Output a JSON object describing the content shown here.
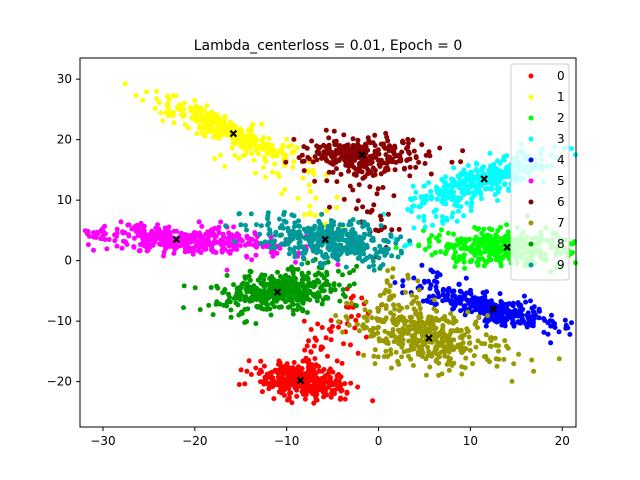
{
  "chart_data": {
    "type": "scatter",
    "title": "Lambda_centerloss = 0.01, Epoch = 0",
    "xlabel": "",
    "ylabel": "",
    "xlim": [
      -32.5,
      21.5
    ],
    "ylim": [
      -27.5,
      33.5
    ],
    "x_ticks": [
      -30,
      -20,
      -10,
      0,
      10,
      20
    ],
    "y_ticks": [
      -20,
      -10,
      0,
      10,
      20,
      30
    ],
    "grid": false,
    "legend_position": "top-right",
    "center_marker": "x",
    "center_color": "#000000",
    "series": [
      {
        "name": "0",
        "color": "#ff0000",
        "center": [
          -8.5,
          -19.8
        ],
        "spread": [
          1.4,
          2.3
        ],
        "angle": 80,
        "count": 420
      },
      {
        "name": "1",
        "color": "#ffff00",
        "center": [
          -15.8,
          21.0
        ],
        "spread": [
          4.6,
          1.0
        ],
        "angle": -34,
        "count": 360
      },
      {
        "name": "2",
        "color": "#00ff00",
        "center": [
          14.0,
          2.2
        ],
        "spread": [
          3.6,
          1.4
        ],
        "angle": -5,
        "count": 360
      },
      {
        "name": "3",
        "color": "#00ffff",
        "center": [
          11.5,
          13.5
        ],
        "spread": [
          4.2,
          1.3
        ],
        "angle": 28,
        "count": 360
      },
      {
        "name": "4",
        "color": "#0000ff",
        "center": [
          12.5,
          -8.0
        ],
        "spread": [
          4.0,
          1.0
        ],
        "angle": -22,
        "count": 340
      },
      {
        "name": "5",
        "color": "#ff00ff",
        "center": [
          -22.0,
          3.5
        ],
        "spread": [
          5.5,
          1.0
        ],
        "angle": -3,
        "count": 420
      },
      {
        "name": "6",
        "color": "#8b0000",
        "center": [
          -1.8,
          17.5
        ],
        "spread": [
          1.4,
          3.2
        ],
        "angle": 92,
        "count": 340
      },
      {
        "name": "7",
        "color": "#999900",
        "center": [
          5.5,
          -12.8
        ],
        "spread": [
          2.3,
          4.0
        ],
        "angle": 68,
        "count": 440
      },
      {
        "name": "8",
        "color": "#009900",
        "center": [
          -11.0,
          -5.2
        ],
        "spread": [
          3.4,
          1.6
        ],
        "angle": 12,
        "count": 400
      },
      {
        "name": "9",
        "color": "#009999",
        "center": [
          -5.8,
          3.5
        ],
        "spread": [
          3.6,
          1.6
        ],
        "angle": -12,
        "count": 400
      }
    ]
  }
}
